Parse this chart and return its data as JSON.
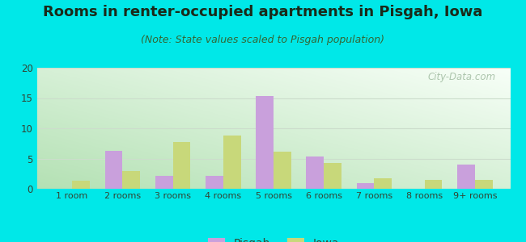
{
  "title": "Rooms in renter-occupied apartments in Pisgah, Iowa",
  "subtitle": "(Note: State values scaled to Pisgah population)",
  "categories": [
    "1 room",
    "2 rooms",
    "3 rooms",
    "4 rooms",
    "5 rooms",
    "6 rooms",
    "7 rooms",
    "8 rooms",
    "9+ rooms"
  ],
  "pisgah_values": [
    0,
    6.3,
    2.2,
    2.2,
    15.3,
    5.3,
    1.0,
    0,
    4.0
  ],
  "iowa_values": [
    1.3,
    3.0,
    7.7,
    8.8,
    6.2,
    4.3,
    1.8,
    1.5,
    1.5
  ],
  "pisgah_color": "#c9a0dc",
  "iowa_color": "#c8d87a",
  "background_outer": "#00e8e8",
  "ylim": [
    0,
    20
  ],
  "yticks": [
    0,
    5,
    10,
    15,
    20
  ],
  "bar_width": 0.35,
  "title_fontsize": 13,
  "subtitle_fontsize": 9,
  "legend_labels": [
    "Pisgah",
    "Iowa"
  ],
  "watermark": "City-Data.com",
  "grid_color": "#ccddcc",
  "bg_top_right": "#f8fff8",
  "bg_bottom_left": "#c8e8c0"
}
